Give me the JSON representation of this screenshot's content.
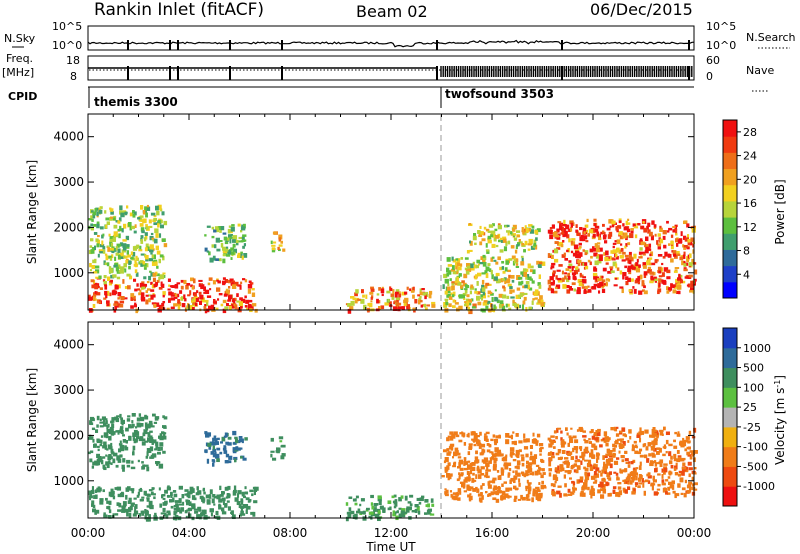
{
  "header": {
    "station": "Rankin Inlet (fitACF)",
    "beam": "Beam 02",
    "date": "06/Dec/2015"
  },
  "panels": {
    "nsky": {
      "left_label": "N.Sky",
      "right_label": "N.Search",
      "left_ticks": [
        "10^5",
        "10^0"
      ],
      "right_ticks": [
        "10^5",
        "10^0"
      ]
    },
    "freq": {
      "left_label_1": "Freq.",
      "left_label_2": "[MHz]",
      "right_label": "Nave",
      "left_ticks": [
        "18",
        "8"
      ],
      "right_ticks": [
        "60",
        "0"
      ]
    },
    "cpid": {
      "label": "CPID",
      "modes": [
        {
          "name": "themis 3300",
          "start_hour": 0
        },
        {
          "name": "twofsound 3503",
          "start_hour": 14
        }
      ]
    }
  },
  "chart_data": [
    {
      "type": "heatmap",
      "title": "Power",
      "xlabel": "Time UT",
      "ylabel": "Slant Range [km]",
      "xlim": [
        0,
        24
      ],
      "ylim": [
        180,
        4500
      ],
      "x_ticks": [
        "00:00",
        "04:00",
        "08:00",
        "12:00",
        "16:00",
        "20:00",
        "00:00"
      ],
      "y_ticks": [
        1000,
        2000,
        3000,
        4000
      ],
      "colorbar": {
        "label": "Power [dB]",
        "ticks": [
          4,
          8,
          12,
          16,
          20,
          24,
          28
        ],
        "range": [
          0,
          30
        ],
        "colors": [
          "#0000ff",
          "#1e40c8",
          "#2e6b9a",
          "#3f9e6e",
          "#5cbf3e",
          "#b7d43a",
          "#f2d020",
          "#f0a020",
          "#ee6e18",
          "#f03a10",
          "#f01010"
        ]
      },
      "scatter_regions": [
        {
          "x": [
            0.0,
            6.6
          ],
          "y": [
            200,
            900
          ],
          "level": 26
        },
        {
          "x": [
            0.0,
            3.0
          ],
          "y": [
            900,
            2500
          ],
          "level": 14
        },
        {
          "x": [
            4.6,
            6.2
          ],
          "y": [
            1300,
            2100
          ],
          "level": 12
        },
        {
          "x": [
            7.2,
            7.7
          ],
          "y": [
            1500,
            2000
          ],
          "level": 18
        },
        {
          "x": [
            10.2,
            13.6
          ],
          "y": [
            200,
            700
          ],
          "level": 22
        },
        {
          "x": [
            14.0,
            18.0
          ],
          "y": [
            200,
            1400
          ],
          "level": 16
        },
        {
          "x": [
            15.0,
            17.8
          ],
          "y": [
            1500,
            2100
          ],
          "level": 16
        },
        {
          "x": [
            18.2,
            24.0
          ],
          "y": [
            600,
            2200
          ],
          "level": 26
        }
      ]
    },
    {
      "type": "heatmap",
      "title": "Velocity",
      "xlabel": "Time UT",
      "ylabel": "Slant Range [km]",
      "xlim": [
        0,
        24
      ],
      "ylim": [
        180,
        4500
      ],
      "x_ticks": [
        "00:00",
        "04:00",
        "08:00",
        "12:00",
        "16:00",
        "20:00",
        "00:00"
      ],
      "y_ticks": [
        1000,
        2000,
        3000,
        4000
      ],
      "colorbar": {
        "label": "Velocity [m s-1]",
        "label_main": "Velocity  [m s",
        "label_sup": "-1",
        "label_end": "]",
        "ticks": [
          1000,
          500,
          100,
          25,
          -25,
          -100,
          -500,
          -1000
        ],
        "colors": [
          "#1a3fbf",
          "#2e6b9a",
          "#3e8e5e",
          "#5cc040",
          "#b4b4b4",
          "#f0b010",
          "#f07c18",
          "#ee4a10",
          "#ee1010"
        ]
      },
      "scatter_regions": [
        {
          "x": [
            0.0,
            6.6
          ],
          "y": [
            200,
            900
          ],
          "level": 200
        },
        {
          "x": [
            0.0,
            3.0
          ],
          "y": [
            1300,
            2500
          ],
          "level": 300
        },
        {
          "x": [
            4.6,
            6.2
          ],
          "y": [
            1400,
            2100
          ],
          "level": 700
        },
        {
          "x": [
            7.2,
            7.7
          ],
          "y": [
            1500,
            2000
          ],
          "level": 150
        },
        {
          "x": [
            10.2,
            13.6
          ],
          "y": [
            200,
            700
          ],
          "level": 120
        },
        {
          "x": [
            14.0,
            18.0
          ],
          "y": [
            600,
            2100
          ],
          "level": -300
        },
        {
          "x": [
            18.2,
            24.0
          ],
          "y": [
            700,
            2200
          ],
          "level": -400
        }
      ]
    }
  ]
}
